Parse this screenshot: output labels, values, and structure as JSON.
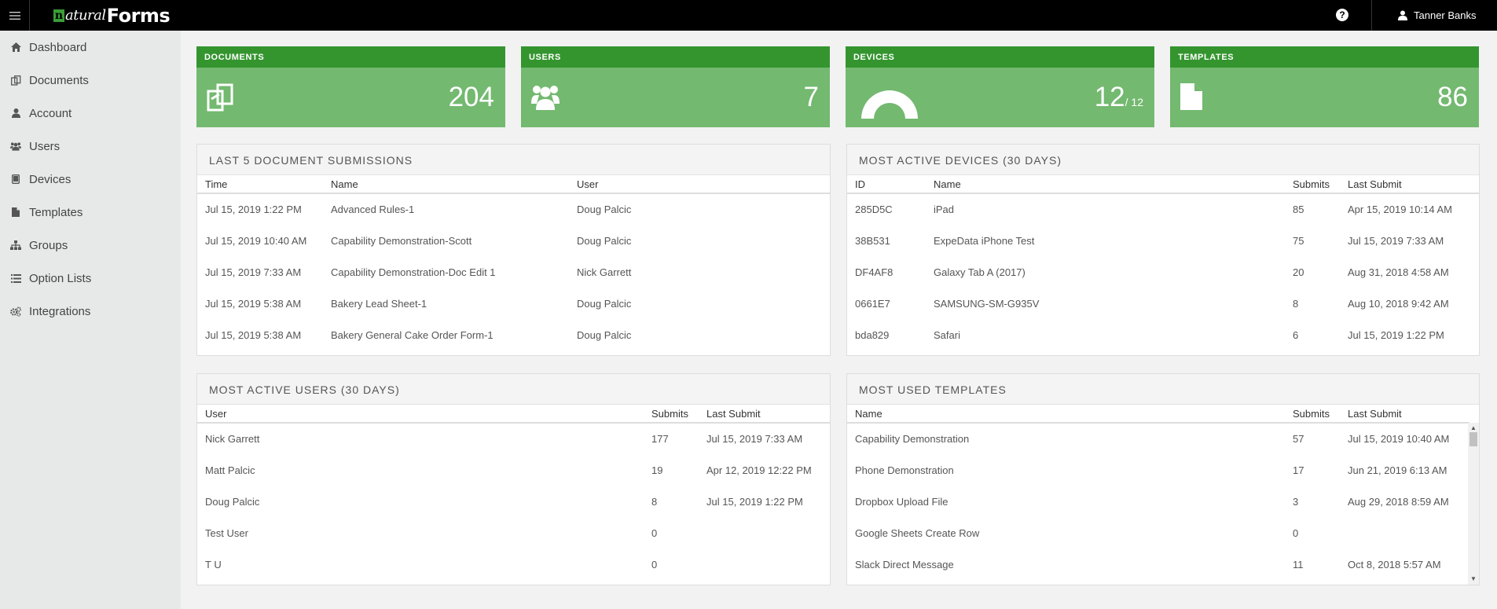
{
  "app": {
    "logo_n": "n",
    "logo_natural": "atural",
    "logo_forms": "Forms",
    "help_label": "?",
    "user_name": "Tanner Banks"
  },
  "sidebar": {
    "items": [
      {
        "label": "Dashboard",
        "icon": "home-icon"
      },
      {
        "label": "Documents",
        "icon": "documents-icon"
      },
      {
        "label": "Account",
        "icon": "user-icon"
      },
      {
        "label": "Users",
        "icon": "users-icon"
      },
      {
        "label": "Devices",
        "icon": "tablet-icon"
      },
      {
        "label": "Templates",
        "icon": "file-icon"
      },
      {
        "label": "Groups",
        "icon": "sitemap-icon"
      },
      {
        "label": "Option Lists",
        "icon": "list-icon"
      },
      {
        "label": "Integrations",
        "icon": "cogs-icon"
      }
    ]
  },
  "stats": {
    "documents": {
      "title": "DOCUMENTS",
      "value": "204"
    },
    "users": {
      "title": "USERS",
      "value": "7"
    },
    "devices": {
      "title": "DEVICES",
      "value": "12",
      "total": "/ 12",
      "gauge_fraction": 1.0
    },
    "templates": {
      "title": "TEMPLATES",
      "value": "86"
    }
  },
  "colors": {
    "card_header": "#34952f",
    "card_body": "#73b970",
    "topbar": "#000000",
    "sidebar": "#e7e9e9"
  },
  "submissions": {
    "title": "LAST 5 DOCUMENT SUBMISSIONS",
    "columns": [
      "Time",
      "Name",
      "User"
    ],
    "rows": [
      [
        "Jul 15, 2019 1:22 PM",
        "Advanced Rules-1",
        "Doug Palcic"
      ],
      [
        "Jul 15, 2019 10:40 AM",
        "Capability Demonstration-Scott",
        "Doug Palcic"
      ],
      [
        "Jul 15, 2019 7:33 AM",
        "Capability Demonstration-Doc Edit 1",
        "Nick Garrett"
      ],
      [
        "Jul 15, 2019 5:38 AM",
        "Bakery Lead Sheet-1",
        "Doug Palcic"
      ],
      [
        "Jul 15, 2019 5:38 AM",
        "Bakery General Cake Order Form-1",
        "Doug Palcic"
      ]
    ]
  },
  "devices": {
    "title": "MOST ACTIVE DEVICES (30 DAYS)",
    "columns": [
      "ID",
      "Name",
      "Submits",
      "Last Submit"
    ],
    "rows": [
      [
        "285D5C",
        "iPad",
        "85",
        "Apr 15, 2019 10:14 AM"
      ],
      [
        "38B531",
        "ExpeData iPhone Test",
        "75",
        "Jul 15, 2019 7:33 AM"
      ],
      [
        "DF4AF8",
        "Galaxy Tab A (2017)",
        "20",
        "Aug 31, 2018 4:58 AM"
      ],
      [
        "0661E7",
        "SAMSUNG-SM-G935V",
        "8",
        "Aug 10, 2018 9:42 AM"
      ],
      [
        "bda829",
        "Safari",
        "6",
        "Jul 15, 2019 1:22 PM"
      ]
    ]
  },
  "active_users": {
    "title": "MOST ACTIVE USERS (30 DAYS)",
    "columns": [
      "User",
      "Submits",
      "Last Submit"
    ],
    "rows": [
      [
        "Nick Garrett",
        "177",
        "Jul 15, 2019 7:33 AM"
      ],
      [
        "Matt Palcic",
        "19",
        "Apr 12, 2019 12:22 PM"
      ],
      [
        "Doug Palcic",
        "8",
        "Jul 15, 2019 1:22 PM"
      ],
      [
        "Test User",
        "0",
        ""
      ],
      [
        "T U",
        "0",
        ""
      ]
    ]
  },
  "templates": {
    "title": "MOST USED TEMPLATES",
    "columns": [
      "Name",
      "Submits",
      "Last Submit"
    ],
    "rows": [
      [
        "Capability Demonstration",
        "57",
        "Jul 15, 2019 10:40 AM"
      ],
      [
        "Phone Demonstration",
        "17",
        "Jun 21, 2019 6:13 AM"
      ],
      [
        "Dropbox Upload File",
        "3",
        "Aug 29, 2018 8:59 AM"
      ],
      [
        "Google Sheets Create Row",
        "0",
        ""
      ],
      [
        "Slack Direct Message",
        "11",
        "Oct 8, 2018 5:57 AM"
      ]
    ]
  }
}
